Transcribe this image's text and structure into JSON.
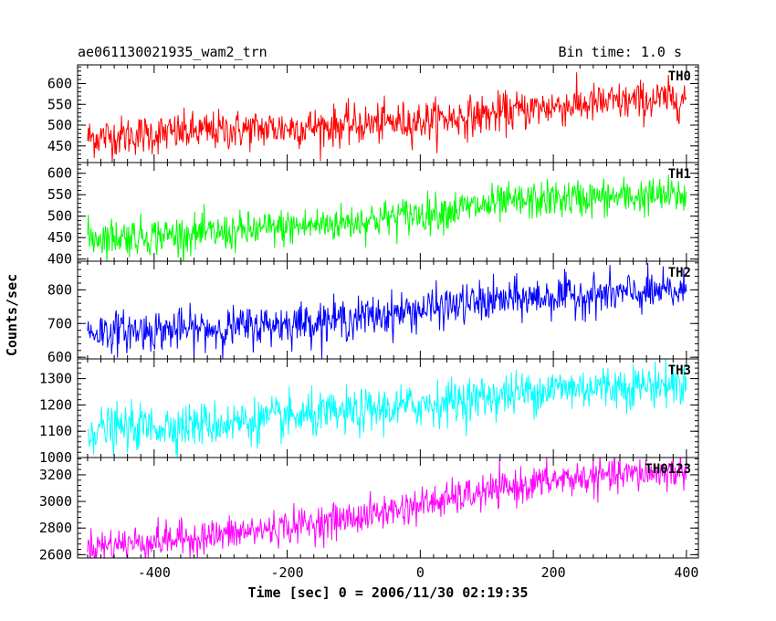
{
  "chart_data": {
    "type": "line",
    "title": "ae061130021935_wam2_trn",
    "bin_time_label": "Bin time: 1.0 s",
    "xlabel": "Time [sec] 0 = 2006/11/30 02:19:35",
    "ylabel": "Counts/sec",
    "xlim": [
      -515,
      418
    ],
    "xticks": [
      -400,
      -200,
      0,
      200,
      400
    ],
    "x_start": -500,
    "x_end": 400,
    "panels": [
      {
        "name": "TH0",
        "color": "#ff0000",
        "ylim": [
          410,
          645
        ],
        "yticks": [
          450,
          500,
          550,
          600
        ],
        "trend": [
          [
            -500,
            470
          ],
          [
            -300,
            487
          ],
          [
            -100,
            500
          ],
          [
            0,
            510
          ],
          [
            100,
            525
          ],
          [
            200,
            545
          ],
          [
            400,
            565
          ]
        ],
        "noise": 24
      },
      {
        "name": "TH1",
        "color": "#00ff00",
        "ylim": [
          395,
          625
        ],
        "yticks": [
          400,
          450,
          500,
          550,
          600
        ],
        "trend": [
          [
            -500,
            450
          ],
          [
            -300,
            460
          ],
          [
            -100,
            487
          ],
          [
            0,
            505
          ],
          [
            100,
            525
          ],
          [
            200,
            540
          ],
          [
            400,
            548
          ]
        ],
        "noise": 22
      },
      {
        "name": "TH2",
        "color": "#0000ff",
        "ylim": [
          595,
          885
        ],
        "yticks": [
          600,
          700,
          800
        ],
        "trend": [
          [
            -500,
            675
          ],
          [
            -300,
            685
          ],
          [
            -100,
            715
          ],
          [
            0,
            740
          ],
          [
            100,
            765
          ],
          [
            200,
            780
          ],
          [
            400,
            795
          ]
        ],
        "noise": 30
      },
      {
        "name": "TH3",
        "color": "#00ffff",
        "ylim": [
          1000,
          1375
        ],
        "yticks": [
          1000,
          1100,
          1200,
          1300
        ],
        "trend": [
          [
            -500,
            1105
          ],
          [
            -300,
            1130
          ],
          [
            -100,
            1170
          ],
          [
            0,
            1200
          ],
          [
            100,
            1230
          ],
          [
            200,
            1262
          ],
          [
            400,
            1280
          ]
        ],
        "noise": 42
      },
      {
        "name": "TH0123",
        "color": "#ff00ff",
        "ylim": [
          2575,
          3330
        ],
        "yticks": [
          2600,
          2800,
          3000,
          3200
        ],
        "trend": [
          [
            -500,
            2660
          ],
          [
            -300,
            2745
          ],
          [
            -100,
            2875
          ],
          [
            0,
            2975
          ],
          [
            100,
            3070
          ],
          [
            200,
            3160
          ],
          [
            400,
            3230
          ]
        ],
        "noise": 65
      }
    ]
  }
}
